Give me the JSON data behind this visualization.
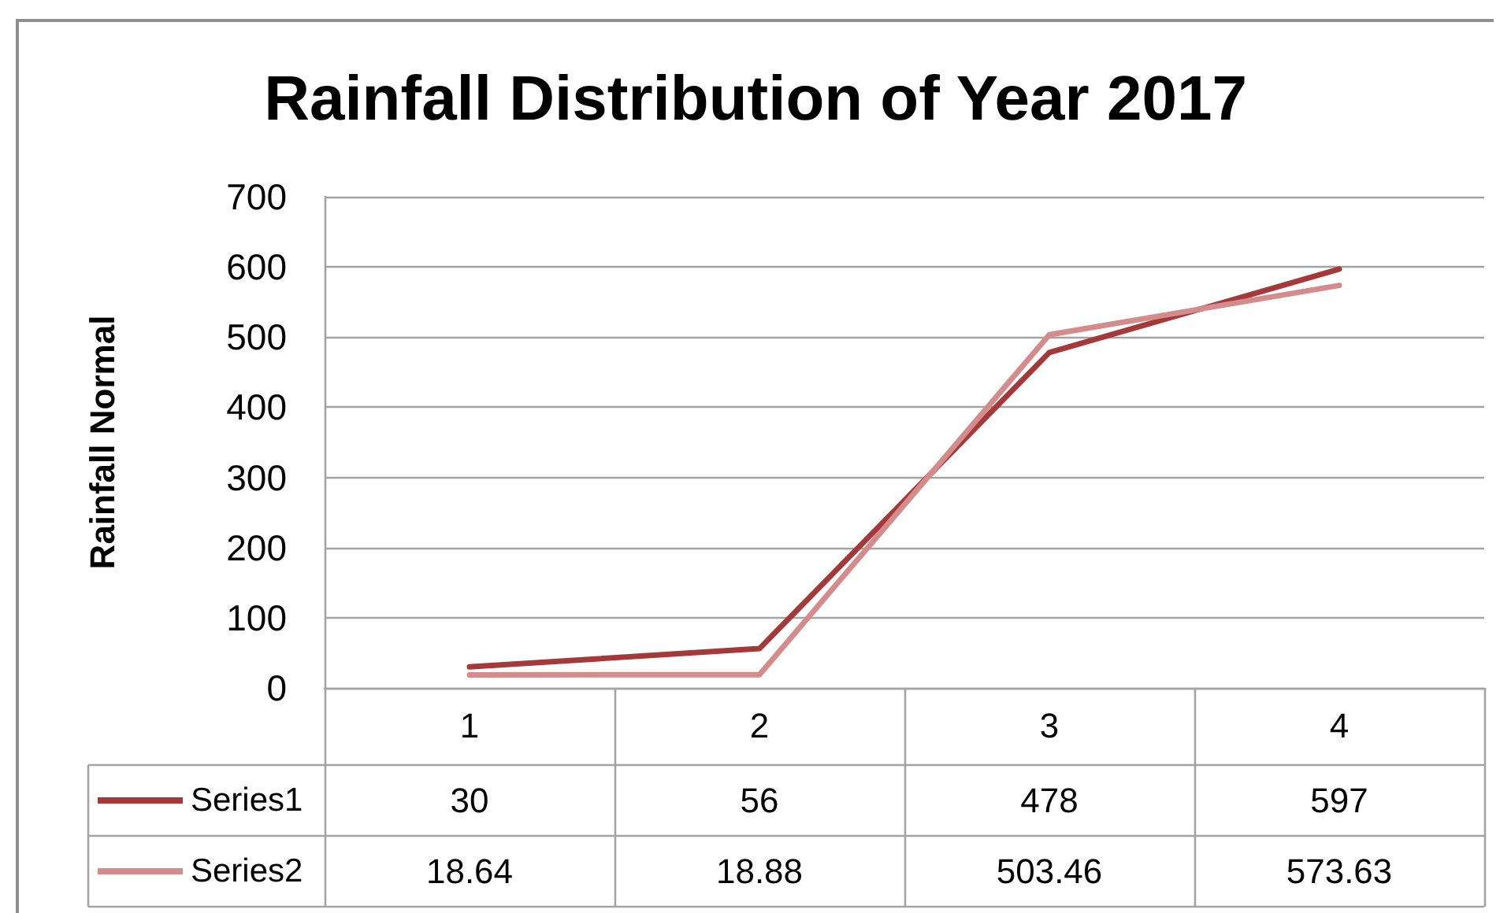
{
  "chart_data": {
    "type": "line",
    "title": "Rainfall Distribution of Year 2017",
    "ylabel": "Rainfall Normal",
    "categories": [
      "1",
      "2",
      "3",
      "4"
    ],
    "series": [
      {
        "name": "Series1",
        "color": "#a5393a",
        "values": [
          30,
          56,
          478,
          597
        ]
      },
      {
        "name": "Series2",
        "color": "#d38b8b",
        "values": [
          18.64,
          18.88,
          503.46,
          573.63
        ]
      }
    ],
    "ylim": [
      0,
      700
    ],
    "yticks": [
      0,
      100,
      200,
      300,
      400,
      500,
      600,
      700
    ],
    "grid": "y",
    "legend": "bottom left",
    "data_labels": true,
    "marker": "none",
    "line_style": "solid"
  }
}
